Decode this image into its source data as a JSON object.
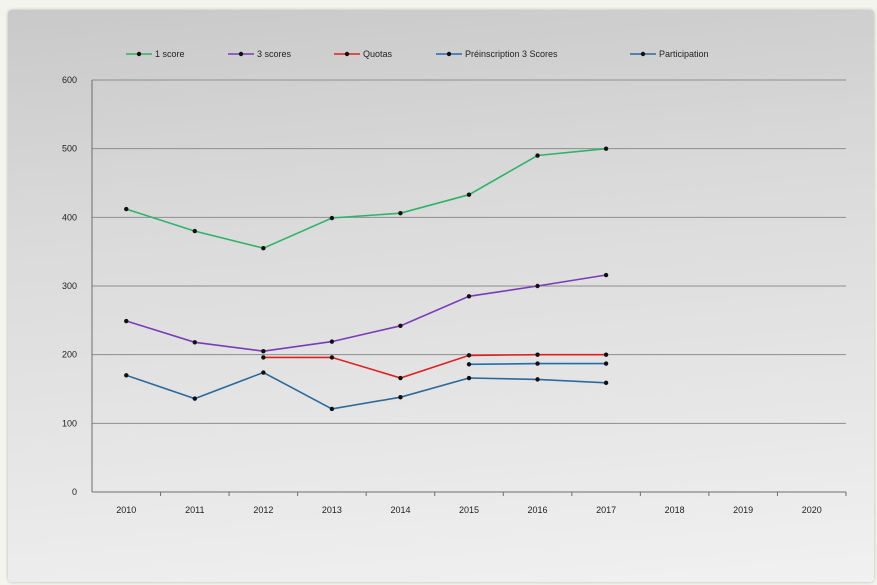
{
  "chart_data": {
    "type": "line",
    "title": "",
    "xlabel": "",
    "ylabel": "",
    "x": [
      "2010",
      "2011",
      "2012",
      "2013",
      "2014",
      "2015",
      "2016",
      "2017",
      "2018",
      "2019",
      "2020"
    ],
    "ylim": [
      0,
      600
    ],
    "yticks": [
      0,
      100,
      200,
      300,
      400,
      500,
      600
    ],
    "ytick_labels": [
      "0",
      "100",
      "200",
      "300",
      "400",
      "500",
      "600"
    ],
    "grid": true,
    "legend_position": "top",
    "series": [
      {
        "name": "1 score",
        "color": "#2db36a",
        "values": [
          412,
          380,
          355,
          399,
          406,
          433,
          490,
          500,
          null,
          null,
          null
        ]
      },
      {
        "name": "3 scores",
        "color": "#7a3cb8",
        "values": [
          249,
          218,
          205,
          219,
          242,
          285,
          300,
          316,
          null,
          null,
          null
        ]
      },
      {
        "name": "Quotas",
        "color": "#e02020",
        "values": [
          null,
          null,
          196,
          196,
          166,
          199,
          200,
          200,
          null,
          null,
          null
        ]
      },
      {
        "name": "Préinscription 3 Scores",
        "color": "#1f6fb4",
        "values": [
          null,
          null,
          null,
          null,
          null,
          186,
          187,
          187,
          null,
          null,
          null
        ]
      },
      {
        "name": "Participation",
        "color": "#2a6a9c",
        "values": [
          170,
          136,
          174,
          121,
          138,
          166,
          164,
          159,
          null,
          null,
          null
        ]
      }
    ]
  }
}
